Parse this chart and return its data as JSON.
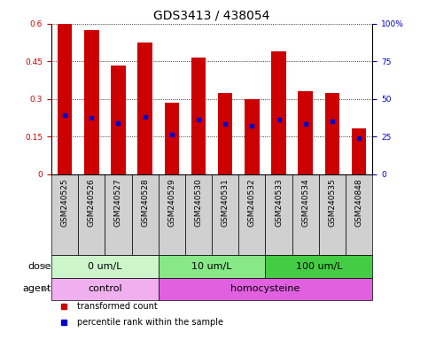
{
  "title": "GDS3413 / 438054",
  "samples": [
    "GSM240525",
    "GSM240526",
    "GSM240527",
    "GSM240528",
    "GSM240529",
    "GSM240530",
    "GSM240531",
    "GSM240532",
    "GSM240533",
    "GSM240534",
    "GSM240535",
    "GSM240848"
  ],
  "bar_heights": [
    0.6,
    0.575,
    0.435,
    0.525,
    0.285,
    0.465,
    0.325,
    0.3,
    0.49,
    0.33,
    0.325,
    0.185
  ],
  "percentile_ranks": [
    0.235,
    0.225,
    0.205,
    0.23,
    0.16,
    0.22,
    0.2,
    0.195,
    0.22,
    0.2,
    0.21,
    0.145
  ],
  "bar_color": "#cc0000",
  "dot_color": "#0000cc",
  "ylim": [
    0,
    0.6
  ],
  "yticks": [
    0,
    0.15,
    0.3,
    0.45,
    0.6
  ],
  "ytick_labels": [
    "0",
    "0.15",
    "0.3",
    "0.45",
    "0.6"
  ],
  "right_yticks": [
    0,
    0.25,
    0.5,
    0.75,
    1.0
  ],
  "right_ytick_labels": [
    "0",
    "25",
    "50",
    "75",
    "100%"
  ],
  "dose_groups": [
    {
      "label": "0 um/L",
      "start": 0,
      "end": 4,
      "color": "#ccf5cc"
    },
    {
      "label": "10 um/L",
      "start": 4,
      "end": 8,
      "color": "#88e888"
    },
    {
      "label": "100 um/L",
      "start": 8,
      "end": 12,
      "color": "#44cc44"
    }
  ],
  "agent_groups": [
    {
      "label": "control",
      "start": 0,
      "end": 4,
      "color": "#f0b0f0"
    },
    {
      "label": "homocysteine",
      "start": 4,
      "end": 12,
      "color": "#e060e0"
    }
  ],
  "dose_label": "dose",
  "agent_label": "agent",
  "legend_items": [
    {
      "label": "transformed count",
      "color": "#cc0000"
    },
    {
      "label": "percentile rank within the sample",
      "color": "#0000cc"
    }
  ],
  "bar_width": 0.55,
  "tick_bg_color": "#d0d0d0",
  "plot_bg": "#ffffff",
  "title_fontsize": 10,
  "tick_fontsize": 6.5,
  "group_fontsize": 8
}
